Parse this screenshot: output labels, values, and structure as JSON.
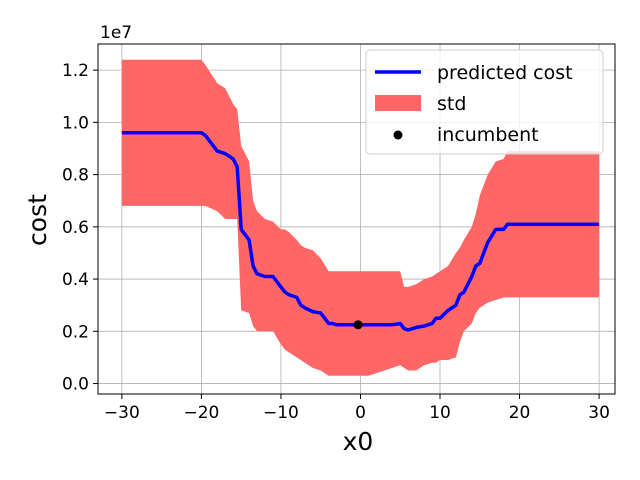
{
  "chart_data": {
    "type": "line",
    "title": "",
    "xlabel": "x0",
    "ylabel": "cost",
    "y_offset_label": "1e7",
    "xlim": [
      -33,
      32
    ],
    "ylim": [
      -0.04,
      1.3
    ],
    "y_scale_note": "values in units of 1e7",
    "x_ticks": [
      -30,
      -20,
      -10,
      0,
      10,
      20,
      30
    ],
    "x_tick_labels": [
      "−30",
      "−20",
      "−10",
      "0",
      "10",
      "20",
      "30"
    ],
    "y_ticks": [
      0.0,
      0.2,
      0.4,
      0.6,
      0.8,
      1.0,
      1.2
    ],
    "y_tick_labels": [
      "0.0",
      "0.2",
      "0.4",
      "0.6",
      "0.8",
      "1.0",
      "1.2"
    ],
    "grid": true,
    "legend_position": "top-right",
    "legend": [
      {
        "label": "predicted cost",
        "kind": "line",
        "color": "#0000ff"
      },
      {
        "label": "std",
        "kind": "patch",
        "color": "#ff6666"
      },
      {
        "label": "incumbent",
        "kind": "marker",
        "color": "#000000"
      }
    ],
    "series": [
      {
        "name": "predicted cost",
        "color": "#0000ff",
        "x": [
          -30,
          -20,
          -19.5,
          -18,
          -17,
          -16,
          -15.5,
          -15,
          -14,
          -13.5,
          -13,
          -12,
          -11,
          -10,
          -9.5,
          -9,
          -8,
          -7.5,
          -7,
          -6,
          -5,
          -4,
          -3.5,
          -3,
          -2,
          -1,
          0,
          1,
          2,
          3,
          4,
          5,
          5.5,
          6,
          7,
          8,
          9,
          9.5,
          10,
          11,
          12,
          12.5,
          13,
          14,
          14.5,
          15,
          16,
          17,
          18,
          18.5,
          30
        ],
        "y": [
          0.96,
          0.96,
          0.95,
          0.89,
          0.88,
          0.86,
          0.83,
          0.59,
          0.55,
          0.45,
          0.42,
          0.41,
          0.41,
          0.37,
          0.35,
          0.34,
          0.33,
          0.3,
          0.29,
          0.275,
          0.27,
          0.23,
          0.23,
          0.225,
          0.225,
          0.225,
          0.225,
          0.225,
          0.225,
          0.225,
          0.225,
          0.23,
          0.21,
          0.205,
          0.215,
          0.22,
          0.23,
          0.25,
          0.25,
          0.28,
          0.3,
          0.34,
          0.35,
          0.41,
          0.45,
          0.46,
          0.54,
          0.59,
          0.59,
          0.61,
          0.61
        ]
      }
    ],
    "band": {
      "name": "std",
      "color": "#ff6666",
      "x": [
        -30,
        -20,
        -19.5,
        -18,
        -17,
        -16,
        -15.5,
        -15,
        -14,
        -13.5,
        -13,
        -12,
        -11,
        -10,
        -9.5,
        -9,
        -8,
        -7.5,
        -7,
        -6,
        -5,
        -4,
        -3.5,
        -3,
        -2,
        -1,
        0,
        1,
        2,
        3,
        4,
        5,
        5.5,
        6,
        7,
        8,
        9,
        9.5,
        10,
        11,
        12,
        12.5,
        13,
        14,
        14.5,
        15,
        16,
        17,
        18,
        18.5,
        30
      ],
      "upper": [
        1.24,
        1.24,
        1.22,
        1.15,
        1.13,
        1.07,
        1.05,
        0.91,
        0.85,
        0.7,
        0.66,
        0.63,
        0.62,
        0.59,
        0.59,
        0.58,
        0.55,
        0.53,
        0.52,
        0.51,
        0.48,
        0.43,
        0.43,
        0.43,
        0.43,
        0.43,
        0.43,
        0.43,
        0.43,
        0.43,
        0.43,
        0.43,
        0.37,
        0.37,
        0.38,
        0.4,
        0.41,
        0.42,
        0.43,
        0.45,
        0.5,
        0.52,
        0.55,
        0.6,
        0.65,
        0.72,
        0.8,
        0.85,
        0.86,
        0.89,
        0.89
      ],
      "lower": [
        0.68,
        0.68,
        0.68,
        0.66,
        0.63,
        0.63,
        0.63,
        0.28,
        0.27,
        0.22,
        0.2,
        0.2,
        0.2,
        0.15,
        0.13,
        0.12,
        0.1,
        0.09,
        0.08,
        0.06,
        0.05,
        0.03,
        0.03,
        0.03,
        0.03,
        0.03,
        0.03,
        0.03,
        0.04,
        0.05,
        0.06,
        0.07,
        0.06,
        0.05,
        0.05,
        0.07,
        0.08,
        0.08,
        0.09,
        0.09,
        0.1,
        0.16,
        0.2,
        0.23,
        0.27,
        0.29,
        0.31,
        0.32,
        0.33,
        0.33,
        0.33
      ]
    },
    "points": [
      {
        "name": "incumbent",
        "x": -0.3,
        "y": 0.225,
        "color": "#000000"
      }
    ]
  }
}
